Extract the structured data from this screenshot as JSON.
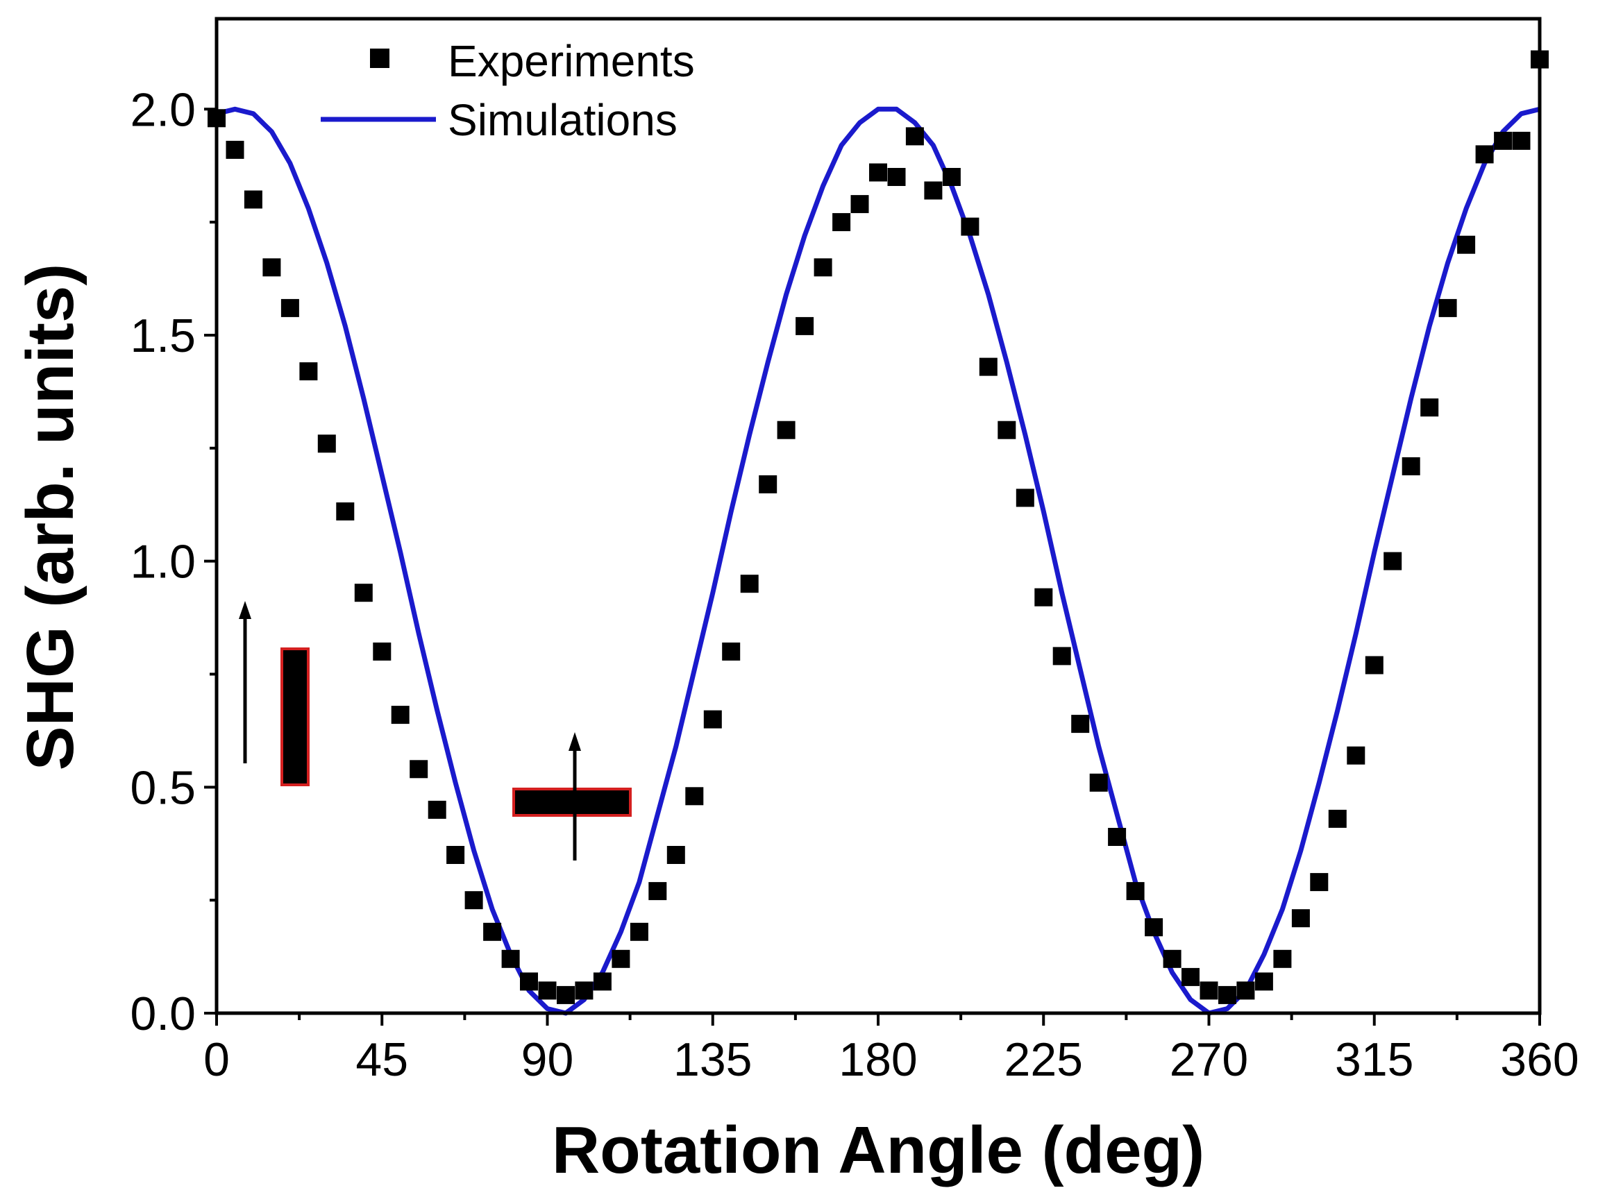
{
  "chart_data": {
    "type": "scatter",
    "xlabel": "Rotation Angle (deg)",
    "ylabel": "SHG (arb. units)",
    "xlim": [
      0,
      360
    ],
    "ylim": [
      0,
      2.2
    ],
    "xticks": [
      0,
      45,
      90,
      135,
      180,
      225,
      270,
      315,
      360
    ],
    "yticks": [
      0.0,
      0.5,
      1.0,
      1.5,
      2.0
    ],
    "xtick_labels": [
      "0",
      "45",
      "90",
      "135",
      "180",
      "225",
      "270",
      "315",
      "360"
    ],
    "ytick_labels": [
      "0.0",
      "0.5",
      "1.0",
      "1.5",
      "2.0"
    ],
    "grid": false,
    "legend_position": "top-left",
    "series": [
      {
        "name": "Experiments",
        "kind": "square-markers",
        "color": "#000000",
        "x": [
          0,
          5,
          10,
          15,
          20,
          25,
          30,
          35,
          40,
          45,
          50,
          55,
          60,
          65,
          70,
          75,
          80,
          85,
          90,
          95,
          100,
          105,
          110,
          115,
          120,
          125,
          130,
          135,
          140,
          145,
          150,
          155,
          160,
          165,
          170,
          175,
          180,
          185,
          190,
          195,
          200,
          205,
          210,
          215,
          220,
          225,
          230,
          235,
          240,
          245,
          250,
          255,
          260,
          265,
          270,
          275,
          280,
          285,
          290,
          295,
          300,
          305,
          310,
          315,
          320,
          325,
          330,
          335,
          340,
          345,
          350,
          355,
          360
        ],
        "y": [
          1.98,
          1.91,
          1.8,
          1.65,
          1.56,
          1.42,
          1.26,
          1.11,
          0.93,
          0.8,
          0.66,
          0.54,
          0.45,
          0.35,
          0.25,
          0.18,
          0.12,
          0.07,
          0.05,
          0.04,
          0.05,
          0.07,
          0.12,
          0.18,
          0.27,
          0.35,
          0.48,
          0.65,
          0.8,
          0.95,
          1.17,
          1.29,
          1.52,
          1.65,
          1.75,
          1.79,
          1.86,
          1.85,
          1.94,
          1.82,
          1.85,
          1.74,
          1.43,
          1.29,
          1.14,
          0.92,
          0.79,
          0.64,
          0.51,
          0.39,
          0.27,
          0.19,
          0.12,
          0.08,
          0.05,
          0.04,
          0.05,
          0.07,
          0.12,
          0.21,
          0.29,
          0.43,
          0.57,
          0.77,
          1.0,
          1.21,
          1.34,
          1.56,
          1.7,
          1.9,
          1.93,
          1.93,
          2.11
        ]
      },
      {
        "name": "Simulations",
        "kind": "line",
        "color": "#1a1acc",
        "x": [
          0,
          5,
          10,
          15,
          20,
          25,
          30,
          35,
          40,
          45,
          50,
          55,
          60,
          65,
          70,
          75,
          80,
          85,
          90,
          95,
          100,
          105,
          110,
          115,
          120,
          125,
          130,
          135,
          140,
          145,
          150,
          155,
          160,
          165,
          170,
          175,
          180,
          185,
          190,
          195,
          200,
          205,
          210,
          215,
          220,
          225,
          230,
          235,
          240,
          245,
          250,
          255,
          260,
          265,
          270,
          275,
          280,
          285,
          290,
          295,
          300,
          305,
          310,
          315,
          320,
          325,
          330,
          335,
          340,
          345,
          350,
          355,
          360
        ],
        "y": [
          1.99,
          2.0,
          1.99,
          1.95,
          1.88,
          1.78,
          1.66,
          1.52,
          1.36,
          1.19,
          1.02,
          0.84,
          0.67,
          0.51,
          0.36,
          0.23,
          0.13,
          0.05,
          0.01,
          0.0,
          0.03,
          0.09,
          0.18,
          0.29,
          0.44,
          0.59,
          0.76,
          0.93,
          1.11,
          1.28,
          1.44,
          1.59,
          1.72,
          1.83,
          1.92,
          1.97,
          2.0,
          2.0,
          1.97,
          1.92,
          1.83,
          1.72,
          1.59,
          1.44,
          1.28,
          1.11,
          0.93,
          0.76,
          0.59,
          0.44,
          0.29,
          0.18,
          0.09,
          0.03,
          0.0,
          0.01,
          0.05,
          0.13,
          0.23,
          0.36,
          0.51,
          0.67,
          0.84,
          1.02,
          1.19,
          1.36,
          1.52,
          1.66,
          1.78,
          1.88,
          1.95,
          1.99,
          2.0
        ]
      }
    ],
    "insets": [
      {
        "name": "vertical-rod",
        "fill": "#000000",
        "stroke": "#d42020"
      },
      {
        "name": "horizontal-rod",
        "fill": "#000000",
        "stroke": "#d42020"
      }
    ]
  }
}
